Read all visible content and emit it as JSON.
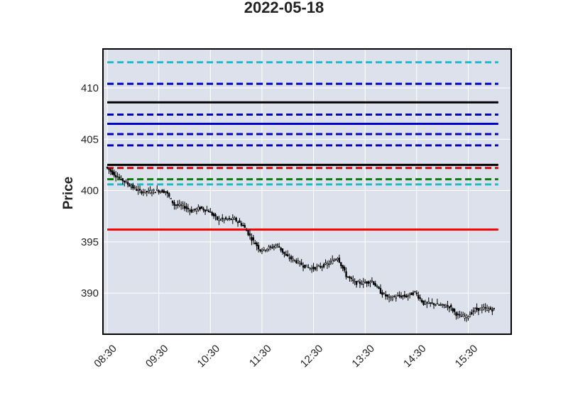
{
  "chart_data": {
    "type": "candlestick",
    "title": "2022-05-18",
    "xlabel": "",
    "ylabel": "Price",
    "ylim": [
      386.0,
      413.8
    ],
    "x_ticks": [
      "08:30",
      "09:30",
      "10:30",
      "11:30",
      "12:30",
      "13:30",
      "14:30",
      "15:30"
    ],
    "y_ticks": [
      390,
      395,
      400,
      405,
      410
    ],
    "grid": true,
    "background_color": "#dde1ec",
    "grid_color": "#ffffff",
    "candle_color": "#000000",
    "x_range": [
      "08:25",
      "16:20"
    ],
    "horizontal_lines": [
      {
        "y": 412.5,
        "color": "#17becf",
        "style": "dashed"
      },
      {
        "y": 410.4,
        "color": "#0000cc",
        "style": "dashed"
      },
      {
        "y": 408.6,
        "color": "#000000",
        "style": "solid"
      },
      {
        "y": 407.4,
        "color": "#0000cc",
        "style": "dashed"
      },
      {
        "y": 406.5,
        "color": "#0000cc",
        "style": "solid"
      },
      {
        "y": 405.5,
        "color": "#0000cc",
        "style": "dashed"
      },
      {
        "y": 404.4,
        "color": "#0000cc",
        "style": "dashed"
      },
      {
        "y": 402.5,
        "color": "#000000",
        "style": "solid"
      },
      {
        "y": 402.2,
        "color": "#dd0000",
        "style": "dashed"
      },
      {
        "y": 401.1,
        "color": "#008000",
        "style": "dashed"
      },
      {
        "y": 400.6,
        "color": "#17becf",
        "style": "dashed"
      },
      {
        "y": 396.2,
        "color": "#ff0000",
        "style": "solid"
      }
    ],
    "price_path": [
      [
        "08:30",
        402.3
      ],
      [
        "08:40",
        401.6
      ],
      [
        "08:50",
        401.0
      ],
      [
        "09:00",
        400.4
      ],
      [
        "09:10",
        399.9
      ],
      [
        "09:20",
        399.9
      ],
      [
        "09:30",
        400.0
      ],
      [
        "09:40",
        399.9
      ],
      [
        "09:50",
        398.6
      ],
      [
        "10:00",
        398.5
      ],
      [
        "10:10",
        398.0
      ],
      [
        "10:20",
        398.3
      ],
      [
        "10:30",
        398.0
      ],
      [
        "10:40",
        397.2
      ],
      [
        "10:50",
        397.2
      ],
      [
        "11:00",
        397.2
      ],
      [
        "11:10",
        396.6
      ],
      [
        "11:20",
        395.3
      ],
      [
        "11:30",
        394.2
      ],
      [
        "11:40",
        394.4
      ],
      [
        "11:50",
        394.7
      ],
      [
        "12:00",
        393.6
      ],
      [
        "12:10",
        393.2
      ],
      [
        "12:20",
        392.7
      ],
      [
        "12:30",
        392.4
      ],
      [
        "12:40",
        392.6
      ],
      [
        "12:50",
        392.9
      ],
      [
        "13:00",
        393.5
      ],
      [
        "13:10",
        391.7
      ],
      [
        "13:20",
        391.0
      ],
      [
        "13:30",
        391.0
      ],
      [
        "13:40",
        391.2
      ],
      [
        "13:50",
        390.1
      ],
      [
        "14:00",
        389.5
      ],
      [
        "14:10",
        389.7
      ],
      [
        "14:20",
        389.7
      ],
      [
        "14:30",
        390.1
      ],
      [
        "14:40",
        389.0
      ],
      [
        "14:50",
        389.0
      ],
      [
        "15:00",
        388.8
      ],
      [
        "15:10",
        388.7
      ],
      [
        "15:20",
        387.8
      ],
      [
        "15:30",
        387.7
      ],
      [
        "15:40",
        388.4
      ],
      [
        "15:50",
        388.5
      ],
      [
        "16:00",
        388.4
      ]
    ]
  }
}
